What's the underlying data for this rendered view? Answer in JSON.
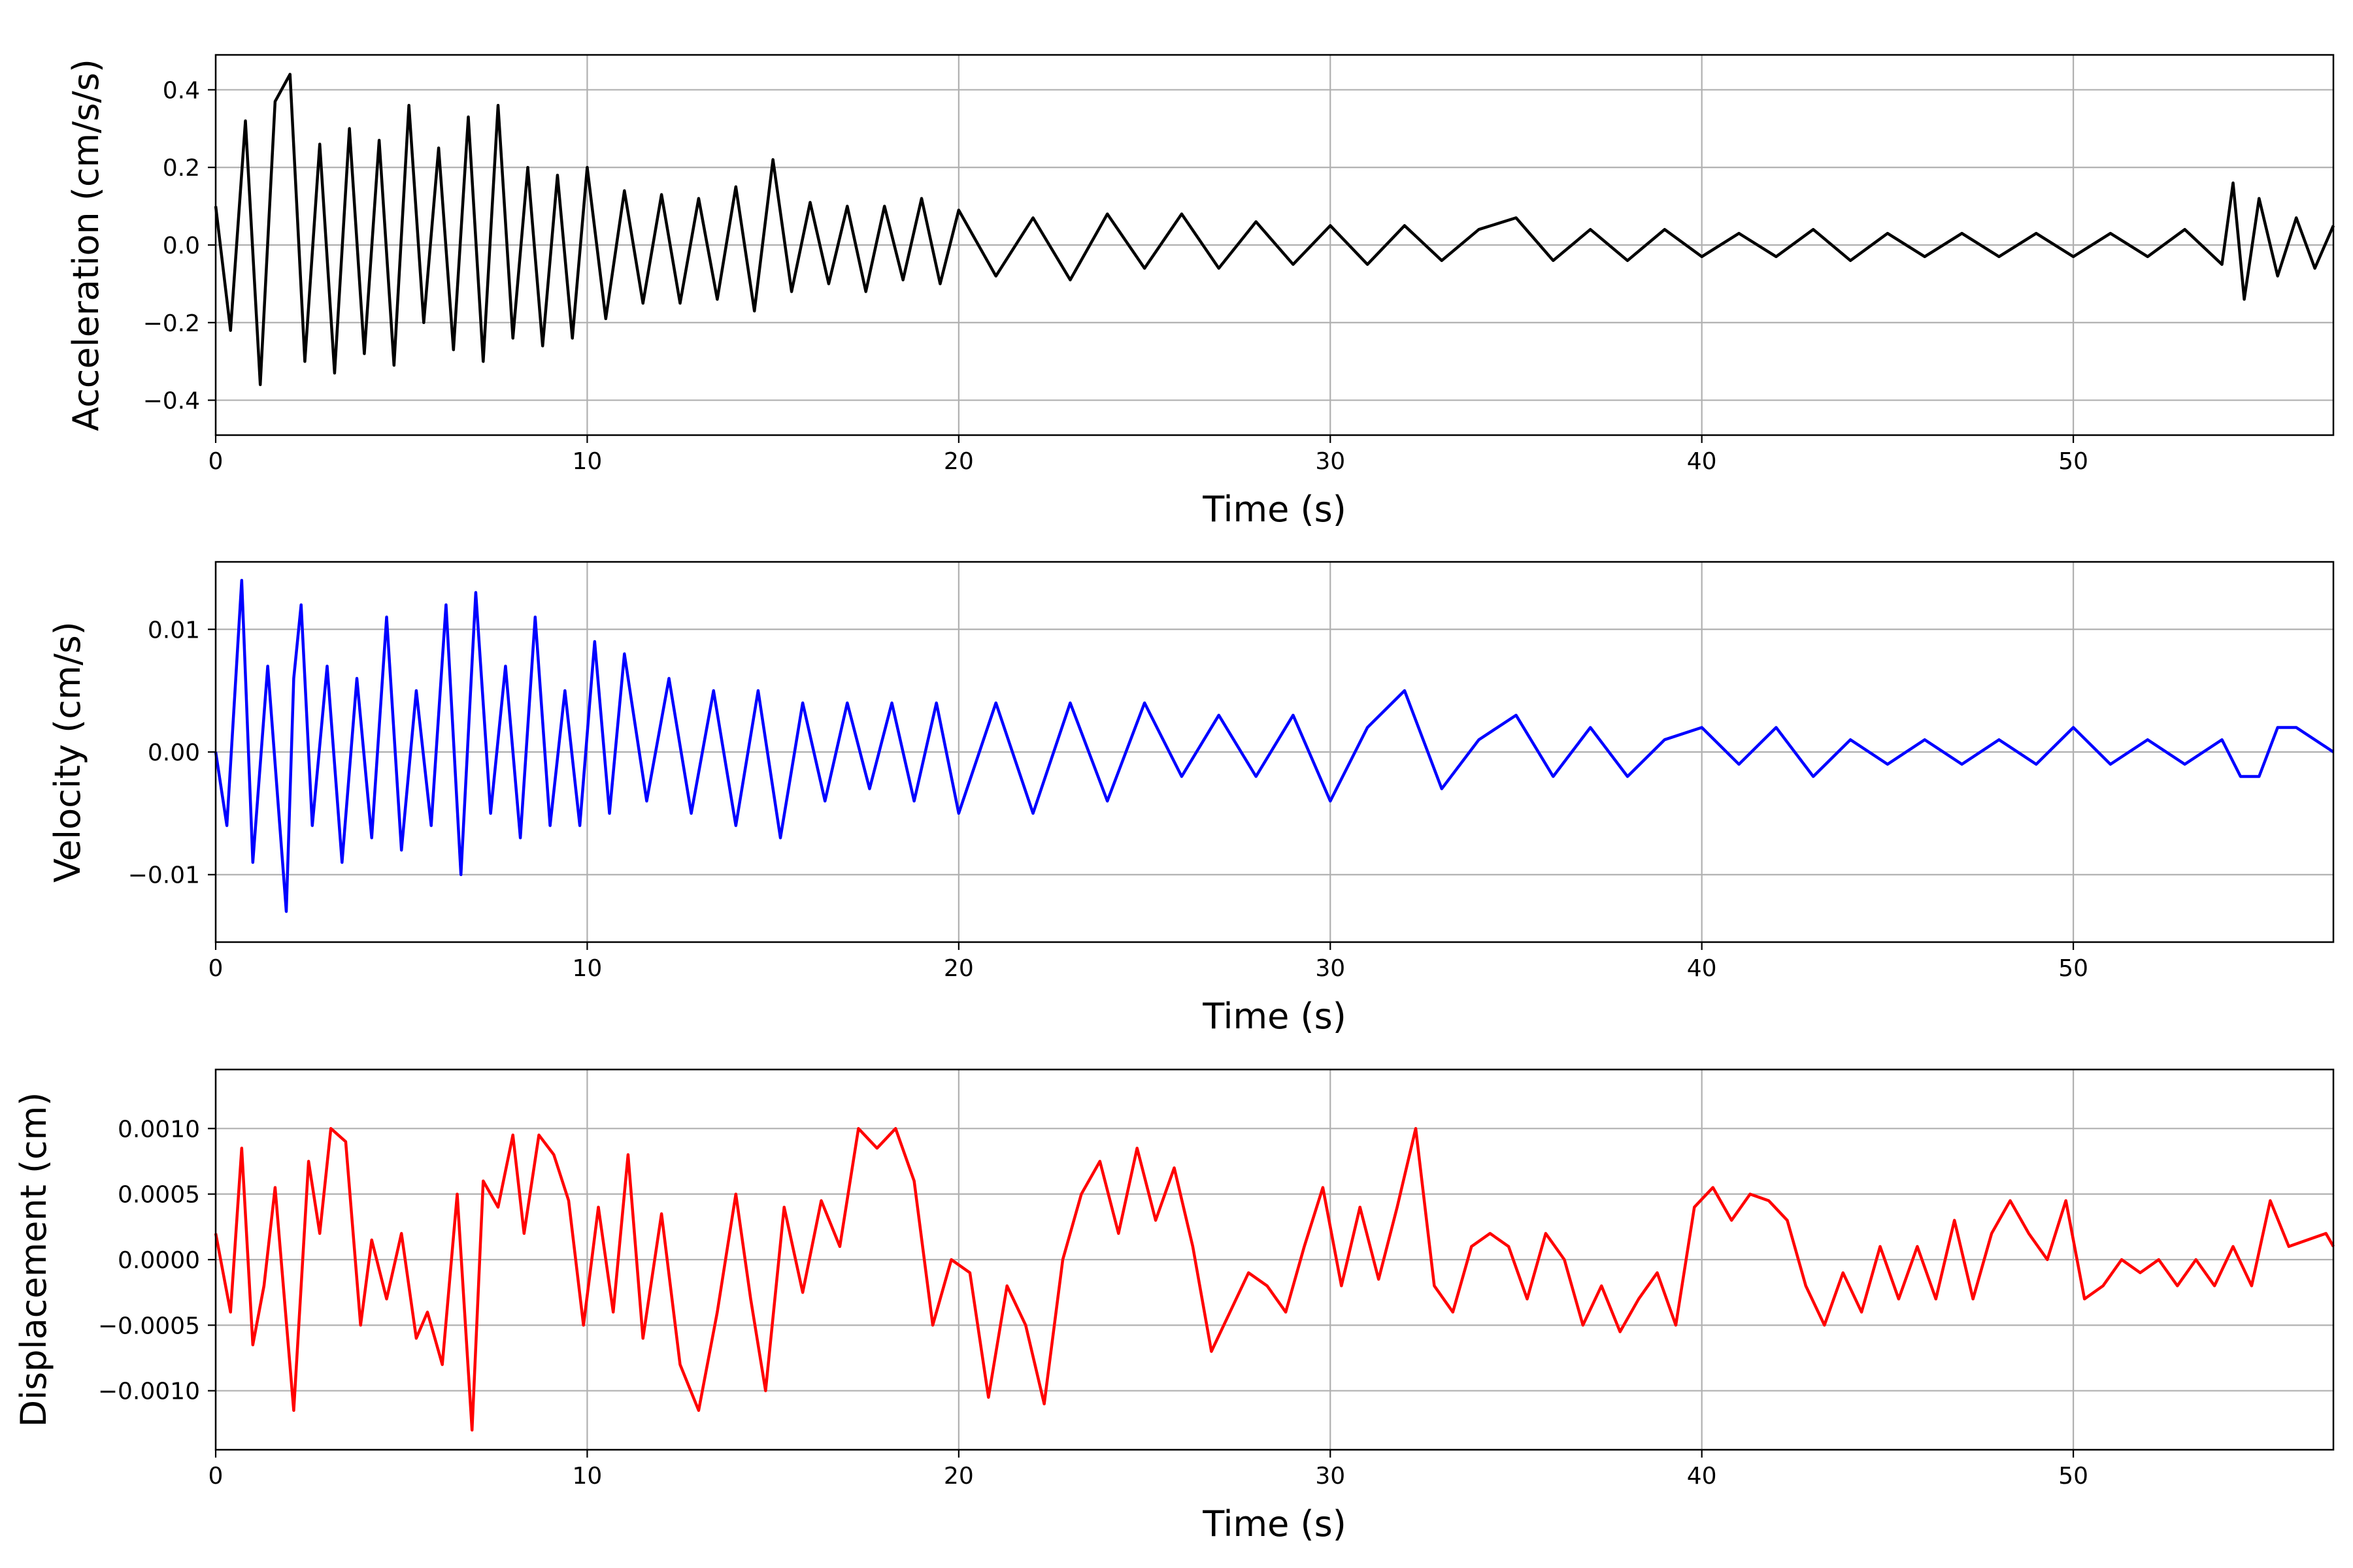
{
  "chart_data": [
    {
      "type": "line",
      "title": "",
      "xlabel": "Time (s)",
      "ylabel": "Acceleration (cm/s/s)",
      "xlim": [
        0,
        57
      ],
      "ylim": [
        -0.49,
        0.49
      ],
      "grid": true,
      "x_ticks": [
        0,
        10,
        20,
        30,
        40,
        50
      ],
      "x_tick_labels": [
        "0",
        "10",
        "20",
        "30",
        "40",
        "50"
      ],
      "y_ticks": [
        0.4,
        0.2,
        0.0,
        -0.2,
        -0.4
      ],
      "y_tick_labels": [
        "0.4",
        "0.2",
        "0.0",
        "−0.2",
        "−0.4"
      ],
      "series": [
        {
          "color": "#000000",
          "x": [
            0,
            0.4,
            0.8,
            1.2,
            1.6,
            2.0,
            2.4,
            2.8,
            3.2,
            3.6,
            4.0,
            4.4,
            4.8,
            5.2,
            5.6,
            6.0,
            6.4,
            6.8,
            7.2,
            7.6,
            8.0,
            8.4,
            8.8,
            9.2,
            9.6,
            10.0,
            10.5,
            11.0,
            11.5,
            12.0,
            12.5,
            13.0,
            13.5,
            14.0,
            14.5,
            15.0,
            15.5,
            16.0,
            16.5,
            17.0,
            17.5,
            18.0,
            18.5,
            19.0,
            19.5,
            20.0,
            21.0,
            22.0,
            23.0,
            24.0,
            25.0,
            26.0,
            27.0,
            28.0,
            29.0,
            30.0,
            31.0,
            32.0,
            33.0,
            34.0,
            35.0,
            36.0,
            37.0,
            38.0,
            39.0,
            40.0,
            41.0,
            42.0,
            43.0,
            44.0,
            45.0,
            46.0,
            47.0,
            48.0,
            49.0,
            50.0,
            51.0,
            52.0,
            53.0,
            54.0,
            54.3,
            54.6,
            55.0,
            55.5,
            56.0,
            56.5,
            57.0
          ],
          "y": [
            0.1,
            -0.22,
            0.32,
            -0.36,
            0.37,
            0.44,
            -0.3,
            0.26,
            -0.33,
            0.3,
            -0.28,
            0.27,
            -0.31,
            0.36,
            -0.2,
            0.25,
            -0.27,
            0.33,
            -0.3,
            0.36,
            -0.24,
            0.2,
            -0.26,
            0.18,
            -0.24,
            0.2,
            -0.19,
            0.14,
            -0.15,
            0.13,
            -0.15,
            0.12,
            -0.14,
            0.15,
            -0.17,
            0.22,
            -0.12,
            0.11,
            -0.1,
            0.1,
            -0.12,
            0.1,
            -0.09,
            0.12,
            -0.1,
            0.09,
            -0.08,
            0.07,
            -0.09,
            0.08,
            -0.06,
            0.08,
            -0.06,
            0.06,
            -0.05,
            0.05,
            -0.05,
            0.05,
            -0.04,
            0.04,
            0.07,
            -0.04,
            0.04,
            -0.04,
            0.04,
            -0.03,
            0.03,
            -0.03,
            0.04,
            -0.04,
            0.03,
            -0.03,
            0.03,
            -0.03,
            0.03,
            -0.03,
            0.03,
            -0.03,
            0.04,
            -0.05,
            0.16,
            -0.14,
            0.12,
            -0.08,
            0.07,
            -0.06,
            0.05
          ]
        }
      ]
    },
    {
      "type": "line",
      "title": "",
      "xlabel": "Time (s)",
      "ylabel": "Velocity (cm/s)",
      "xlim": [
        0,
        57
      ],
      "ylim": [
        -0.0155,
        0.0155
      ],
      "grid": true,
      "x_ticks": [
        0,
        10,
        20,
        30,
        40,
        50
      ],
      "x_tick_labels": [
        "0",
        "10",
        "20",
        "30",
        "40",
        "50"
      ],
      "y_ticks": [
        0.01,
        0.0,
        -0.01
      ],
      "y_tick_labels": [
        "0.01",
        "0.00",
        "−0.01"
      ],
      "series": [
        {
          "color": "#0000ff",
          "x": [
            0,
            0.3,
            0.7,
            1.0,
            1.4,
            1.9,
            2.1,
            2.3,
            2.6,
            3.0,
            3.4,
            3.8,
            4.2,
            4.6,
            5.0,
            5.4,
            5.8,
            6.2,
            6.6,
            7.0,
            7.4,
            7.8,
            8.2,
            8.6,
            9.0,
            9.4,
            9.8,
            10.2,
            10.6,
            11.0,
            11.6,
            12.2,
            12.8,
            13.4,
            14.0,
            14.6,
            15.2,
            15.8,
            16.4,
            17.0,
            17.6,
            18.2,
            18.8,
            19.4,
            20.0,
            21.0,
            22.0,
            23.0,
            24.0,
            25.0,
            26.0,
            27.0,
            28.0,
            29.0,
            30.0,
            31.0,
            32.0,
            33.0,
            34.0,
            35.0,
            36.0,
            37.0,
            38.0,
            39.0,
            40.0,
            41.0,
            42.0,
            43.0,
            44.0,
            45.0,
            46.0,
            47.0,
            48.0,
            49.0,
            50.0,
            51.0,
            52.0,
            53.0,
            54.0,
            54.5,
            55.0,
            55.5,
            56.0,
            56.5,
            57.0
          ],
          "y": [
            0.0,
            -0.006,
            0.014,
            -0.009,
            0.007,
            -0.013,
            0.006,
            0.012,
            -0.006,
            0.007,
            -0.009,
            0.006,
            -0.007,
            0.011,
            -0.008,
            0.005,
            -0.006,
            0.012,
            -0.01,
            0.013,
            -0.005,
            0.007,
            -0.007,
            0.011,
            -0.006,
            0.005,
            -0.006,
            0.009,
            -0.005,
            0.008,
            -0.004,
            0.006,
            -0.005,
            0.005,
            -0.006,
            0.005,
            -0.007,
            0.004,
            -0.004,
            0.004,
            -0.003,
            0.004,
            -0.004,
            0.004,
            -0.005,
            0.004,
            -0.005,
            0.004,
            -0.004,
            0.004,
            -0.002,
            0.003,
            -0.002,
            0.003,
            -0.004,
            0.002,
            0.005,
            -0.003,
            0.001,
            0.003,
            -0.002,
            0.002,
            -0.002,
            0.001,
            0.002,
            -0.001,
            0.002,
            -0.002,
            0.001,
            -0.001,
            0.001,
            -0.001,
            0.001,
            -0.001,
            0.002,
            -0.001,
            0.001,
            -0.001,
            0.001,
            -0.002,
            -0.002,
            0.002,
            0.002,
            0.001,
            0.0
          ]
        }
      ]
    },
    {
      "type": "line",
      "title": "",
      "xlabel": "Time (s)",
      "ylabel": "Displacement (cm)",
      "xlim": [
        0,
        57
      ],
      "ylim": [
        -0.00145,
        0.00145
      ],
      "grid": true,
      "x_ticks": [
        0,
        10,
        20,
        30,
        40,
        50
      ],
      "x_tick_labels": [
        "0",
        "10",
        "20",
        "30",
        "40",
        "50"
      ],
      "y_ticks": [
        0.001,
        0.0005,
        0.0,
        -0.0005,
        -0.001
      ],
      "y_tick_labels": [
        "0.0010",
        "0.0005",
        "0.0000",
        "−0.0005",
        "−0.0010"
      ],
      "series": [
        {
          "color": "#ff0000",
          "x": [
            0,
            0.4,
            0.7,
            1.0,
            1.3,
            1.6,
            2.1,
            2.5,
            2.8,
            3.1,
            3.5,
            3.9,
            4.2,
            4.6,
            5.0,
            5.4,
            5.7,
            6.1,
            6.5,
            6.9,
            7.2,
            7.6,
            8.0,
            8.3,
            8.7,
            9.1,
            9.5,
            9.9,
            10.3,
            10.7,
            11.1,
            11.5,
            12.0,
            12.5,
            13.0,
            13.5,
            14.0,
            14.4,
            14.8,
            15.3,
            15.8,
            16.3,
            16.8,
            17.3,
            17.8,
            18.3,
            18.8,
            19.3,
            19.8,
            20.3,
            20.8,
            21.3,
            21.8,
            22.3,
            22.8,
            23.3,
            23.8,
            24.3,
            24.8,
            25.3,
            25.8,
            26.3,
            26.8,
            27.3,
            27.8,
            28.3,
            28.8,
            29.3,
            29.8,
            30.3,
            30.8,
            31.3,
            31.8,
            32.3,
            32.8,
            33.3,
            33.8,
            34.3,
            34.8,
            35.3,
            35.8,
            36.3,
            36.8,
            37.3,
            37.8,
            38.3,
            38.8,
            39.3,
            39.8,
            40.3,
            40.8,
            41.3,
            41.8,
            42.3,
            42.8,
            43.3,
            43.8,
            44.3,
            44.8,
            45.3,
            45.8,
            46.3,
            46.8,
            47.3,
            47.8,
            48.3,
            48.8,
            49.3,
            49.8,
            50.3,
            50.8,
            51.3,
            51.8,
            52.3,
            52.8,
            53.3,
            53.8,
            54.3,
            54.8,
            55.3,
            55.8,
            56.3,
            56.8,
            57.0
          ],
          "y": [
            0.0002,
            -0.0004,
            0.00085,
            -0.00065,
            -0.0002,
            0.00055,
            -0.00115,
            0.00075,
            0.0002,
            0.001,
            0.0009,
            -0.0005,
            0.00015,
            -0.0003,
            0.0002,
            -0.0006,
            -0.0004,
            -0.0008,
            0.0005,
            -0.0013,
            0.0006,
            0.0004,
            0.00095,
            0.0002,
            0.00095,
            0.0008,
            0.00045,
            -0.0005,
            0.0004,
            -0.0004,
            0.0008,
            -0.0006,
            0.00035,
            -0.0008,
            -0.00115,
            -0.0004,
            0.0005,
            -0.0003,
            -0.001,
            0.0004,
            -0.00025,
            0.00045,
            0.0001,
            0.001,
            0.00085,
            0.001,
            0.0006,
            -0.0005,
            0.0,
            -0.0001,
            -0.00105,
            -0.0002,
            -0.0005,
            -0.0011,
            0.0,
            0.0005,
            0.00075,
            0.0002,
            0.00085,
            0.0003,
            0.0007,
            0.0001,
            -0.0007,
            -0.0004,
            -0.0001,
            -0.0002,
            -0.0004,
            0.0001,
            0.00055,
            -0.0002,
            0.0004,
            -0.00015,
            0.0004,
            0.001,
            -0.0002,
            -0.0004,
            0.0001,
            0.0002,
            0.0001,
            -0.0003,
            0.0002,
            0.0,
            -0.0005,
            -0.0002,
            -0.00055,
            -0.0003,
            -0.0001,
            -0.0005,
            0.0004,
            0.00055,
            0.0003,
            0.0005,
            0.00045,
            0.0003,
            -0.0002,
            -0.0005,
            -0.0001,
            -0.0004,
            0.0001,
            -0.0003,
            0.0001,
            -0.0003,
            0.0003,
            -0.0003,
            0.0002,
            0.00045,
            0.0002,
            0.0,
            0.00045,
            -0.0003,
            -0.0002,
            0.0,
            -0.0001,
            0.0,
            -0.0002,
            0.0,
            -0.0002,
            0.0001,
            -0.0002,
            0.00045,
            0.0001,
            0.00015,
            0.0002,
            0.0001
          ]
        }
      ]
    }
  ]
}
